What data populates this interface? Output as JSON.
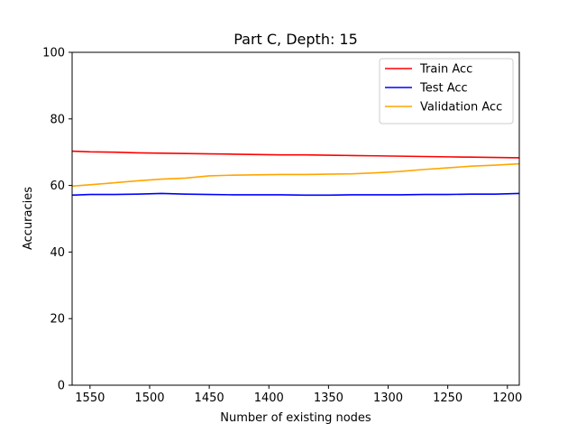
{
  "chart_data": {
    "type": "line",
    "title": "Part C, Depth: 15",
    "xlabel": "Number of existing nodes",
    "ylabel": "Accuracies",
    "xlim": [
      1565,
      1190
    ],
    "ylim": [
      0,
      100
    ],
    "x_inverted": true,
    "x_ticks": [
      1550,
      1500,
      1450,
      1400,
      1350,
      1300,
      1250,
      1200
    ],
    "y_ticks": [
      0,
      20,
      40,
      60,
      80,
      100
    ],
    "grid": false,
    "legend_position": "top-right",
    "series": [
      {
        "name": "Train Acc",
        "color": "#ff0000",
        "x": [
          1565,
          1550,
          1530,
          1510,
          1490,
          1470,
          1450,
          1430,
          1410,
          1390,
          1370,
          1350,
          1330,
          1310,
          1290,
          1270,
          1250,
          1230,
          1210,
          1190
        ],
        "y": [
          70.3,
          70.1,
          70.0,
          69.8,
          69.7,
          69.6,
          69.5,
          69.4,
          69.3,
          69.2,
          69.2,
          69.1,
          69.0,
          68.9,
          68.8,
          68.7,
          68.6,
          68.5,
          68.4,
          68.3
        ]
      },
      {
        "name": "Test Acc",
        "color": "#0000ff",
        "x": [
          1565,
          1550,
          1530,
          1510,
          1490,
          1470,
          1450,
          1430,
          1410,
          1390,
          1370,
          1350,
          1330,
          1310,
          1290,
          1270,
          1250,
          1230,
          1210,
          1190
        ],
        "y": [
          57.1,
          57.3,
          57.3,
          57.4,
          57.6,
          57.4,
          57.3,
          57.2,
          57.2,
          57.2,
          57.1,
          57.1,
          57.2,
          57.2,
          57.2,
          57.3,
          57.3,
          57.4,
          57.4,
          57.6
        ]
      },
      {
        "name": "Validation Acc",
        "color": "#ffa500",
        "x": [
          1565,
          1550,
          1530,
          1510,
          1490,
          1470,
          1450,
          1430,
          1410,
          1390,
          1370,
          1350,
          1330,
          1310,
          1290,
          1270,
          1250,
          1230,
          1210,
          1190
        ],
        "y": [
          59.8,
          60.2,
          60.8,
          61.4,
          61.9,
          62.2,
          62.9,
          63.1,
          63.2,
          63.3,
          63.3,
          63.4,
          63.5,
          63.8,
          64.2,
          64.8,
          65.3,
          65.8,
          66.1,
          66.5
        ]
      }
    ]
  }
}
